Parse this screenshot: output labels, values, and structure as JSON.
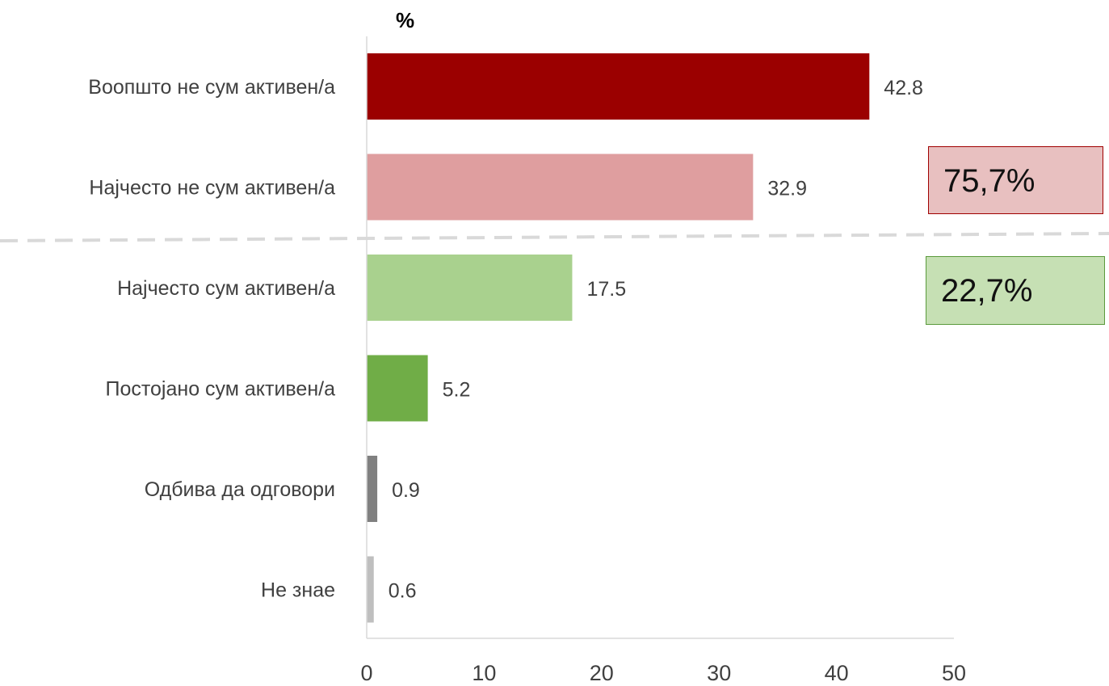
{
  "unit_label": "%",
  "summary": {
    "inactive_total": "75,7%",
    "active_total": "22,7%"
  },
  "colors": {
    "dark_red": "#9b0000",
    "light_red": "#df9e9f",
    "light_green": "#a9d18e",
    "green": "#70ad47",
    "dark_gray": "#808080",
    "light_gray": "#bfbfbf",
    "divider": "#d9d9d9"
  },
  "chart_data": {
    "type": "bar",
    "orientation": "horizontal",
    "categories": [
      "Воопшто не сум активен/а",
      "Најчесто не сум активен/а",
      "Најчесто сум активен/а",
      "Постојано сум активен/а",
      "Одбива да одговори",
      "Не знае"
    ],
    "values": [
      42.8,
      32.9,
      17.5,
      5.2,
      0.9,
      0.6
    ],
    "data_labels": [
      "42.8",
      "32.9",
      "17.5",
      "5.2",
      "0.9",
      "0.6"
    ],
    "bar_colors": [
      "#9b0000",
      "#df9e9f",
      "#a9d18e",
      "#70ad47",
      "#808080",
      "#bfbfbf"
    ],
    "xlim": [
      0,
      50
    ],
    "xticks": [
      0,
      10,
      20,
      30,
      40,
      50
    ],
    "grid": false,
    "legend": "none"
  }
}
